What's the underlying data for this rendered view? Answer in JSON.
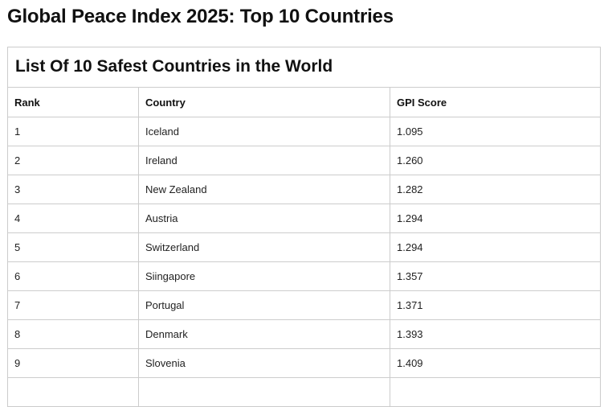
{
  "title": "Global Peace Index 2025: Top 10 Countries",
  "table": {
    "caption": "List Of 10 Safest Countries in the World",
    "headers": [
      "Rank",
      "Country",
      "GPI Score"
    ],
    "rows": [
      [
        "1",
        "Iceland",
        "1.095"
      ],
      [
        "2",
        "Ireland",
        "1.260"
      ],
      [
        "3",
        "New Zealand",
        "1.282"
      ],
      [
        "4",
        "Austria",
        "1.294"
      ],
      [
        "5",
        "Switzerland",
        "1.294"
      ],
      [
        "6",
        "Siingapore",
        "1.357"
      ],
      [
        "7",
        "Portugal",
        "1.371"
      ],
      [
        "8",
        "Denmark",
        "1.393"
      ],
      [
        "9",
        "Slovenia",
        "1.409"
      ],
      [
        "",
        "",
        ""
      ]
    ]
  }
}
